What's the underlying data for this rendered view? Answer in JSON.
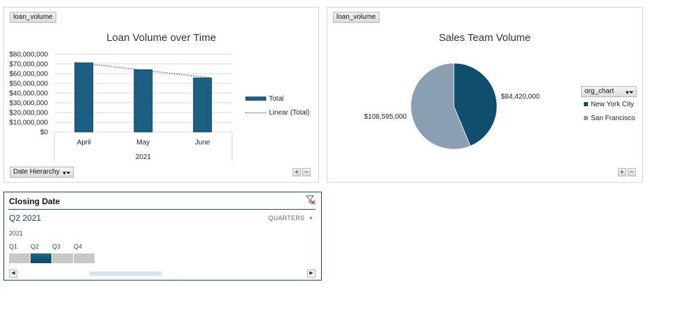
{
  "loan_chart": {
    "field_button": "loan_volume",
    "filter_button": "Date Hierarchy",
    "legend": [
      "Total",
      "Linear (Total)"
    ],
    "plus": "+",
    "minus": "−"
  },
  "sales_chart": {
    "field_button": "loan_volume",
    "legend_field": "org_chart",
    "plus": "+",
    "minus": "−"
  },
  "colors": {
    "bar": "#1b5f82",
    "bar_edge": "#11445e",
    "nyc": "#0f4f6d",
    "sf": "#8a9fb1",
    "accent": "#1a4e6e"
  },
  "chart_data": [
    {
      "type": "bar",
      "title": "Loan Volume over Time",
      "categories": [
        "April",
        "May",
        "June"
      ],
      "group_label": "2021",
      "series": [
        {
          "name": "Total",
          "values": [
            71000000,
            64000000,
            55500000
          ]
        },
        {
          "name": "Linear (Total)",
          "values": [
            71500000,
            63500000,
            55500000
          ]
        }
      ],
      "ylim": [
        0,
        80000000
      ],
      "yticks": [
        0,
        10000000,
        20000000,
        30000000,
        40000000,
        50000000,
        60000000,
        70000000,
        80000000
      ],
      "ytick_labels": [
        "$0",
        "$10,000,000",
        "$20,000,000",
        "$30,000,000",
        "$40,000,000",
        "$50,000,000",
        "$60,000,000",
        "$70,000,000",
        "$80,000,000"
      ],
      "grid": true,
      "legend_position": "right"
    },
    {
      "type": "pie",
      "title": "Sales Team Volume",
      "slices": [
        {
          "name": "New York City",
          "value": 84420000,
          "label": "$84,420,000"
        },
        {
          "name": "San Francisco",
          "value": 108595000,
          "label": "$108,595,000"
        }
      ],
      "legend_position": "right"
    }
  ],
  "slicer": {
    "title": "Closing Date",
    "selection": "Q2 2021",
    "level": "QUARTERS",
    "year": "2021",
    "quarters": [
      "Q1",
      "Q2",
      "Q3",
      "Q4"
    ],
    "selected_quarter": "Q2"
  }
}
